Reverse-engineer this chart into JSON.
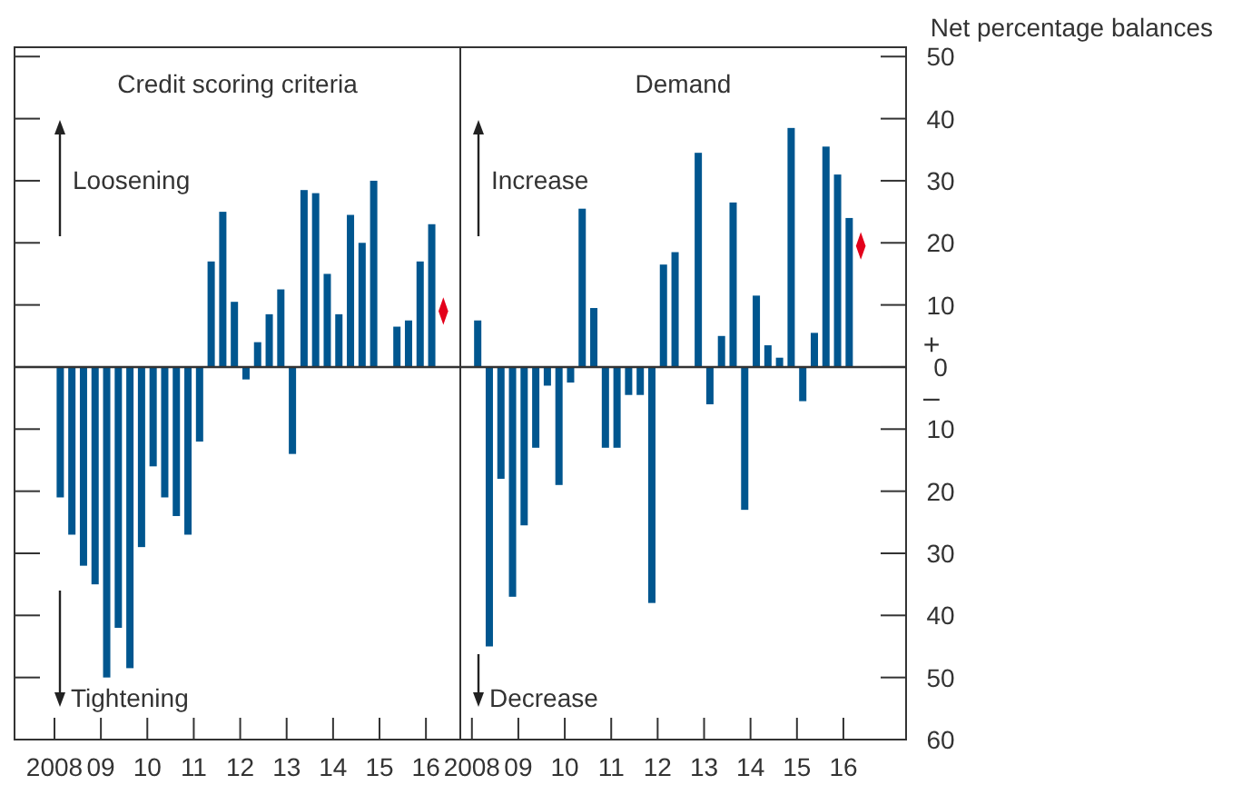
{
  "chart_data": [
    {
      "type": "bar",
      "title": "Credit scoring criteria",
      "x": [
        2008.125,
        2008.375,
        2008.625,
        2008.875,
        2009.125,
        2009.375,
        2009.625,
        2009.875,
        2010.125,
        2010.375,
        2010.625,
        2010.875,
        2011.125,
        2011.375,
        2011.625,
        2011.875,
        2012.125,
        2012.375,
        2012.625,
        2012.875,
        2013.125,
        2013.375,
        2013.625,
        2013.875,
        2014.125,
        2014.375,
        2014.625,
        2014.875,
        2015.125,
        2015.375,
        2015.625,
        2015.875,
        2016.125
      ],
      "series": [
        {
          "color": "#00568f",
          "values": [
            -21,
            -27,
            -32,
            -35,
            -50,
            -42,
            -48.5,
            -29,
            -16,
            -21,
            -24,
            -27,
            -12,
            17,
            25,
            10.5,
            -2,
            4,
            8.5,
            12.5,
            -14,
            28.5,
            28,
            15,
            8.5,
            24.5,
            20,
            30,
            null,
            6.5,
            7.5,
            17,
            23
          ]
        },
        {
          "type": "scatter",
          "marker": "diamond",
          "color": "#e3001b",
          "x": [
            2016.375
          ],
          "values": [
            9
          ]
        }
      ],
      "xlim": [
        2007.14,
        2016.74
      ],
      "xticks": [
        {
          "value": 2008,
          "label": "2008"
        },
        {
          "value": 2009,
          "label": "09"
        },
        {
          "value": 2010,
          "label": "10"
        },
        {
          "value": 2011,
          "label": "11"
        },
        {
          "value": 2012,
          "label": "12"
        },
        {
          "value": 2013,
          "label": "13"
        },
        {
          "value": 2014,
          "label": "14"
        },
        {
          "value": 2015,
          "label": "15"
        },
        {
          "value": 2016,
          "label": "16"
        }
      ],
      "ylim": [
        -60,
        51.5
      ],
      "yticks": [
        -60,
        -50,
        -40,
        -30,
        -20,
        -10,
        0,
        10,
        20,
        30,
        40,
        50
      ],
      "tick_labels": "x",
      "annotations": [
        "Loosening",
        "Tightening"
      ]
    },
    {
      "type": "bar",
      "title": "Demand",
      "ylabel": "Net percentage balances",
      "x": [
        2008.125,
        2008.375,
        2008.625,
        2008.875,
        2009.125,
        2009.375,
        2009.625,
        2009.875,
        2010.125,
        2010.375,
        2010.625,
        2010.875,
        2011.125,
        2011.375,
        2011.625,
        2011.875,
        2012.125,
        2012.375,
        2012.625,
        2012.875,
        2013.125,
        2013.375,
        2013.625,
        2013.875,
        2014.125,
        2014.375,
        2014.625,
        2014.875,
        2015.125,
        2015.375,
        2015.625,
        2015.875,
        2016.125
      ],
      "series": [
        {
          "color": "#00568f",
          "values": [
            7.5,
            -45,
            -18,
            -37,
            -25.5,
            -13,
            -3,
            -19,
            -2.5,
            25.5,
            9.5,
            -13,
            -13,
            -4.5,
            -4.5,
            -38,
            16.5,
            18.5,
            null,
            34.5,
            -6,
            5,
            26.5,
            -23,
            11.5,
            3.5,
            1.5,
            38.5,
            -5.5,
            5.5,
            35.5,
            31,
            24
          ]
        },
        {
          "type": "scatter",
          "marker": "diamond",
          "color": "#e3001b",
          "x": [
            2016.375
          ],
          "values": [
            19.5
          ]
        }
      ],
      "xlim": [
        2007.75,
        2017.35
      ],
      "xticks": [
        {
          "value": 2008,
          "label": "2008"
        },
        {
          "value": 2009,
          "label": "09"
        },
        {
          "value": 2010,
          "label": "10"
        },
        {
          "value": 2011,
          "label": "11"
        },
        {
          "value": 2012,
          "label": "12"
        },
        {
          "value": 2013,
          "label": "13"
        },
        {
          "value": 2014,
          "label": "14"
        },
        {
          "value": 2015,
          "label": "15"
        },
        {
          "value": 2016,
          "label": "16"
        }
      ],
      "ylim": [
        -60,
        51.5
      ],
      "yticks": [
        {
          "value": -60,
          "label": "60"
        },
        {
          "value": -50,
          "label": "50"
        },
        {
          "value": -40,
          "label": "40"
        },
        {
          "value": -30,
          "label": "30"
        },
        {
          "value": -20,
          "label": "20"
        },
        {
          "value": -10,
          "label": "10"
        },
        0,
        10,
        20,
        30,
        40,
        50
      ],
      "annotations": [
        "Increase",
        "Decrease",
        "+",
        "–"
      ]
    }
  ]
}
